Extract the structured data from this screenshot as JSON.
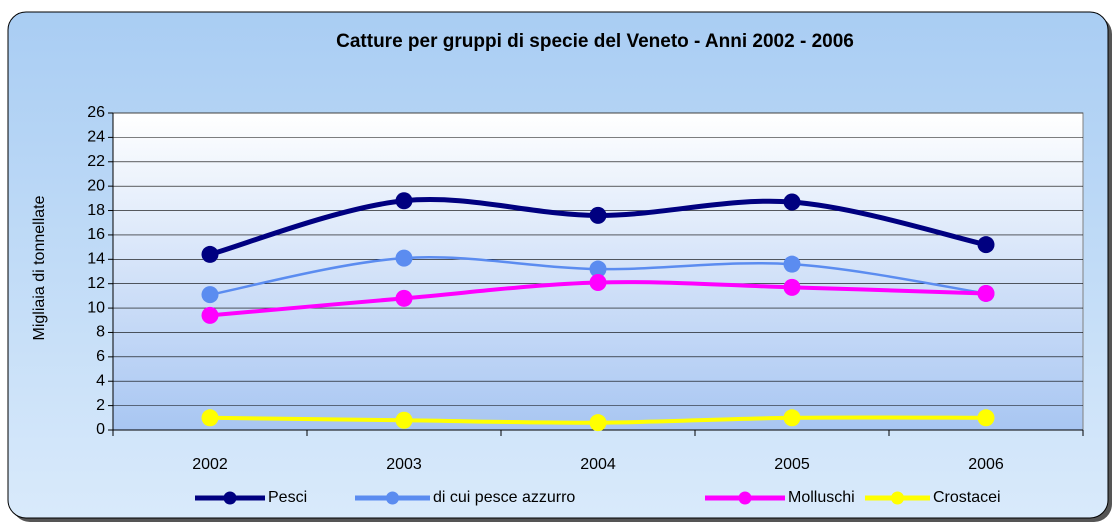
{
  "chart_data": {
    "type": "line",
    "title": "Catture per gruppi di specie del Veneto - Anni 2002 - 2006",
    "y_label": "Migliaia di tonnellate",
    "categories": [
      "2002",
      "2003",
      "2004",
      "2005",
      "2006"
    ],
    "series": [
      {
        "name": "Pesci",
        "color": "#000080",
        "values": [
          14.4,
          18.8,
          17.6,
          18.7,
          15.2
        ]
      },
      {
        "name": "di cui pesce azzurro",
        "color": "#5b8cf0",
        "values": [
          11.1,
          14.1,
          13.2,
          13.6,
          11.2
        ]
      },
      {
        "name": "Molluschi",
        "color": "#ff00ff",
        "values": [
          9.4,
          10.8,
          12.1,
          11.7,
          11.2
        ]
      },
      {
        "name": "Crostacei",
        "color": "#ffff00",
        "values": [
          1.0,
          0.8,
          0.6,
          1.0,
          1.0
        ]
      }
    ],
    "ylim": [
      0,
      26
    ],
    "yticks": [
      0,
      2,
      4,
      6,
      8,
      10,
      12,
      14,
      16,
      18,
      20,
      22,
      24,
      26
    ],
    "grid": true,
    "legend": "bottom"
  }
}
